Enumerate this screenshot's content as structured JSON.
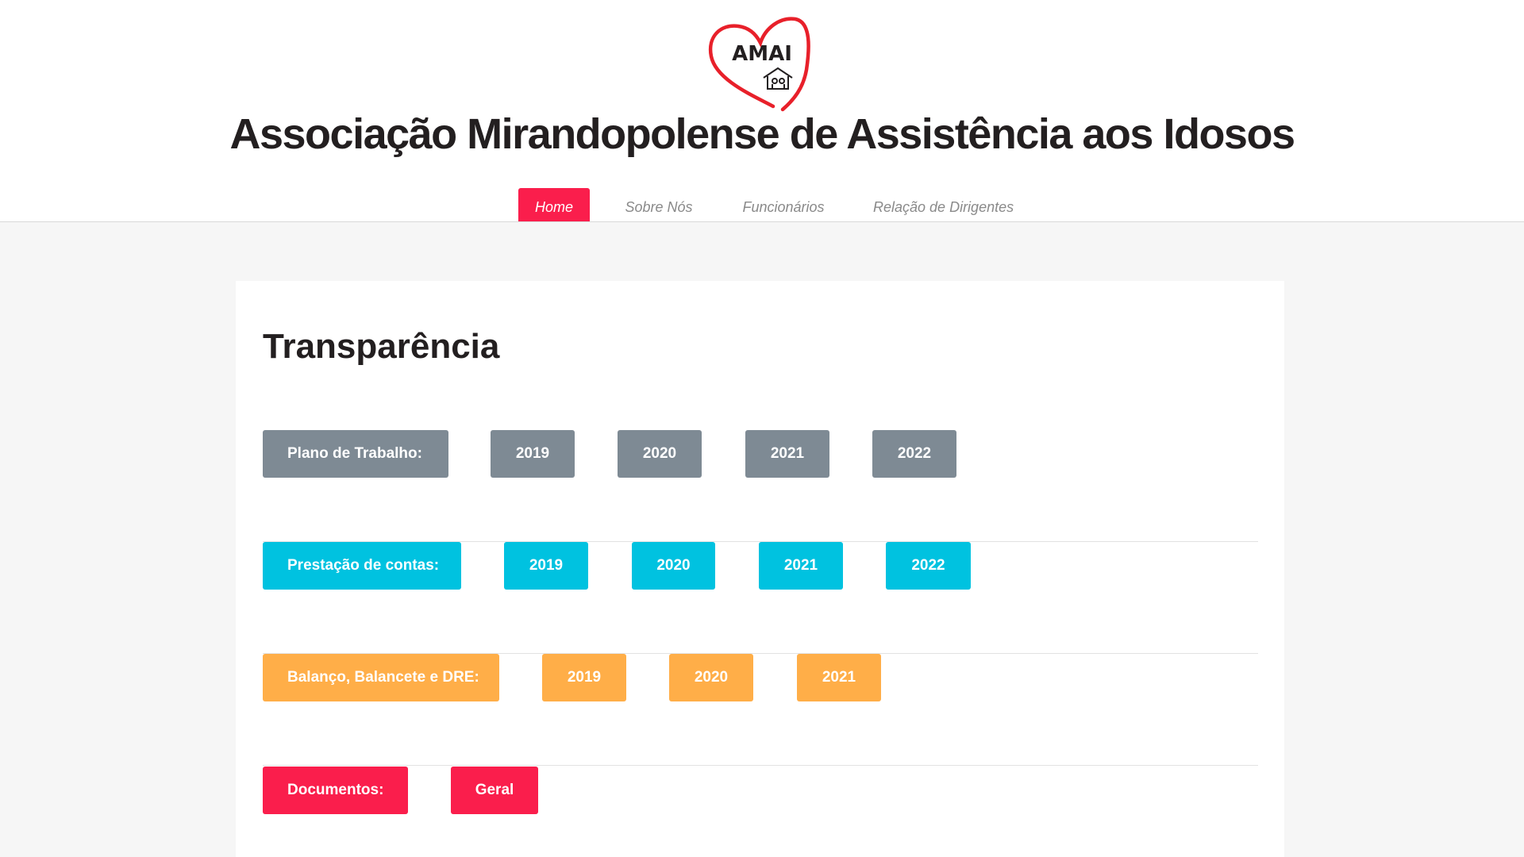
{
  "header": {
    "logo_text": "AMAI",
    "title": "Associação Mirandopolense de Assistência aos Idosos"
  },
  "nav": {
    "items": [
      {
        "label": "Home"
      },
      {
        "label": "Sobre Nós"
      },
      {
        "label": "Funcionários"
      },
      {
        "label": "Relação de Dirigentes"
      }
    ]
  },
  "main": {
    "title": "Transparência",
    "rows": [
      {
        "label": "Plano de Trabalho:",
        "links": [
          "2019",
          "2020",
          "2021",
          "2022"
        ]
      },
      {
        "label": "Prestação de contas:",
        "links": [
          "2019",
          "2020",
          "2021",
          "2022"
        ]
      },
      {
        "label": "Balanço, Balancete e DRE:",
        "links": [
          "2019",
          "2020",
          "2021"
        ]
      },
      {
        "label": "Documentos:",
        "links": [
          "Geral"
        ]
      }
    ]
  },
  "colors": {
    "accent_red": "#fa1e4c",
    "gray": "#7e8a94",
    "cyan": "#00c2e0",
    "orange": "#ffae48"
  }
}
